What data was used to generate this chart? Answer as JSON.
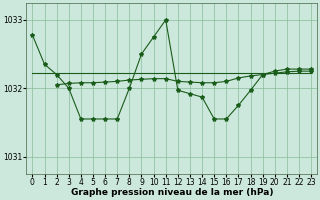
{
  "title": "Graphe pression niveau de la mer (hPa)",
  "background_color": "#cce8dc",
  "plot_bg_color": "#cce8dc",
  "grid_color": "#88bb99",
  "line_color": "#1a5c1a",
  "text_color": "#000000",
  "xlim": [
    -0.5,
    23.5
  ],
  "ylim": [
    1030.75,
    1033.25
  ],
  "yticks": [
    1031,
    1032,
    1033
  ],
  "xticks": [
    0,
    1,
    2,
    3,
    4,
    5,
    6,
    7,
    8,
    9,
    10,
    11,
    12,
    13,
    14,
    15,
    16,
    17,
    18,
    19,
    20,
    21,
    22,
    23
  ],
  "spiky_x": [
    0,
    1,
    2,
    3,
    4,
    5,
    6,
    7,
    8,
    9,
    10,
    11,
    12,
    13,
    14,
    15,
    16,
    17,
    18,
    19,
    20,
    21,
    22,
    23
  ],
  "spiky_y": [
    1032.78,
    1032.35,
    1032.2,
    1032.0,
    1031.55,
    1031.55,
    1031.55,
    1031.55,
    1032.0,
    1032.5,
    1032.75,
    1033.0,
    1031.97,
    1031.92,
    1031.87,
    1031.55,
    1031.55,
    1031.75,
    1031.97,
    1032.2,
    1032.25,
    1032.28,
    1032.28,
    1032.28
  ],
  "flat_x": [
    0,
    1,
    2,
    3,
    4,
    5,
    6,
    7,
    8,
    9,
    10,
    11,
    12,
    13,
    14,
    15,
    16,
    17,
    18,
    19,
    20,
    21,
    22,
    23
  ],
  "flat_y": [
    1032.22,
    1032.22,
    1032.22,
    1032.22,
    1032.22,
    1032.22,
    1032.22,
    1032.22,
    1032.22,
    1032.22,
    1032.22,
    1032.22,
    1032.22,
    1032.22,
    1032.22,
    1032.22,
    1032.22,
    1032.22,
    1032.22,
    1032.22,
    1032.22,
    1032.22,
    1032.22,
    1032.22
  ],
  "smooth_x": [
    2,
    3,
    4,
    5,
    6,
    7,
    8,
    9,
    10,
    11,
    12,
    13,
    14,
    15,
    16,
    17,
    18,
    19,
    20,
    21,
    22,
    23
  ],
  "smooth_y": [
    1032.05,
    1032.07,
    1032.08,
    1032.08,
    1032.09,
    1032.1,
    1032.12,
    1032.13,
    1032.14,
    1032.14,
    1032.1,
    1032.09,
    1032.08,
    1032.08,
    1032.1,
    1032.15,
    1032.18,
    1032.2,
    1032.22,
    1032.24,
    1032.25,
    1032.25
  ],
  "marker": "*",
  "markersize": 3,
  "linewidth": 0.8,
  "title_fontsize": 6.5,
  "tick_fontsize": 5.5
}
